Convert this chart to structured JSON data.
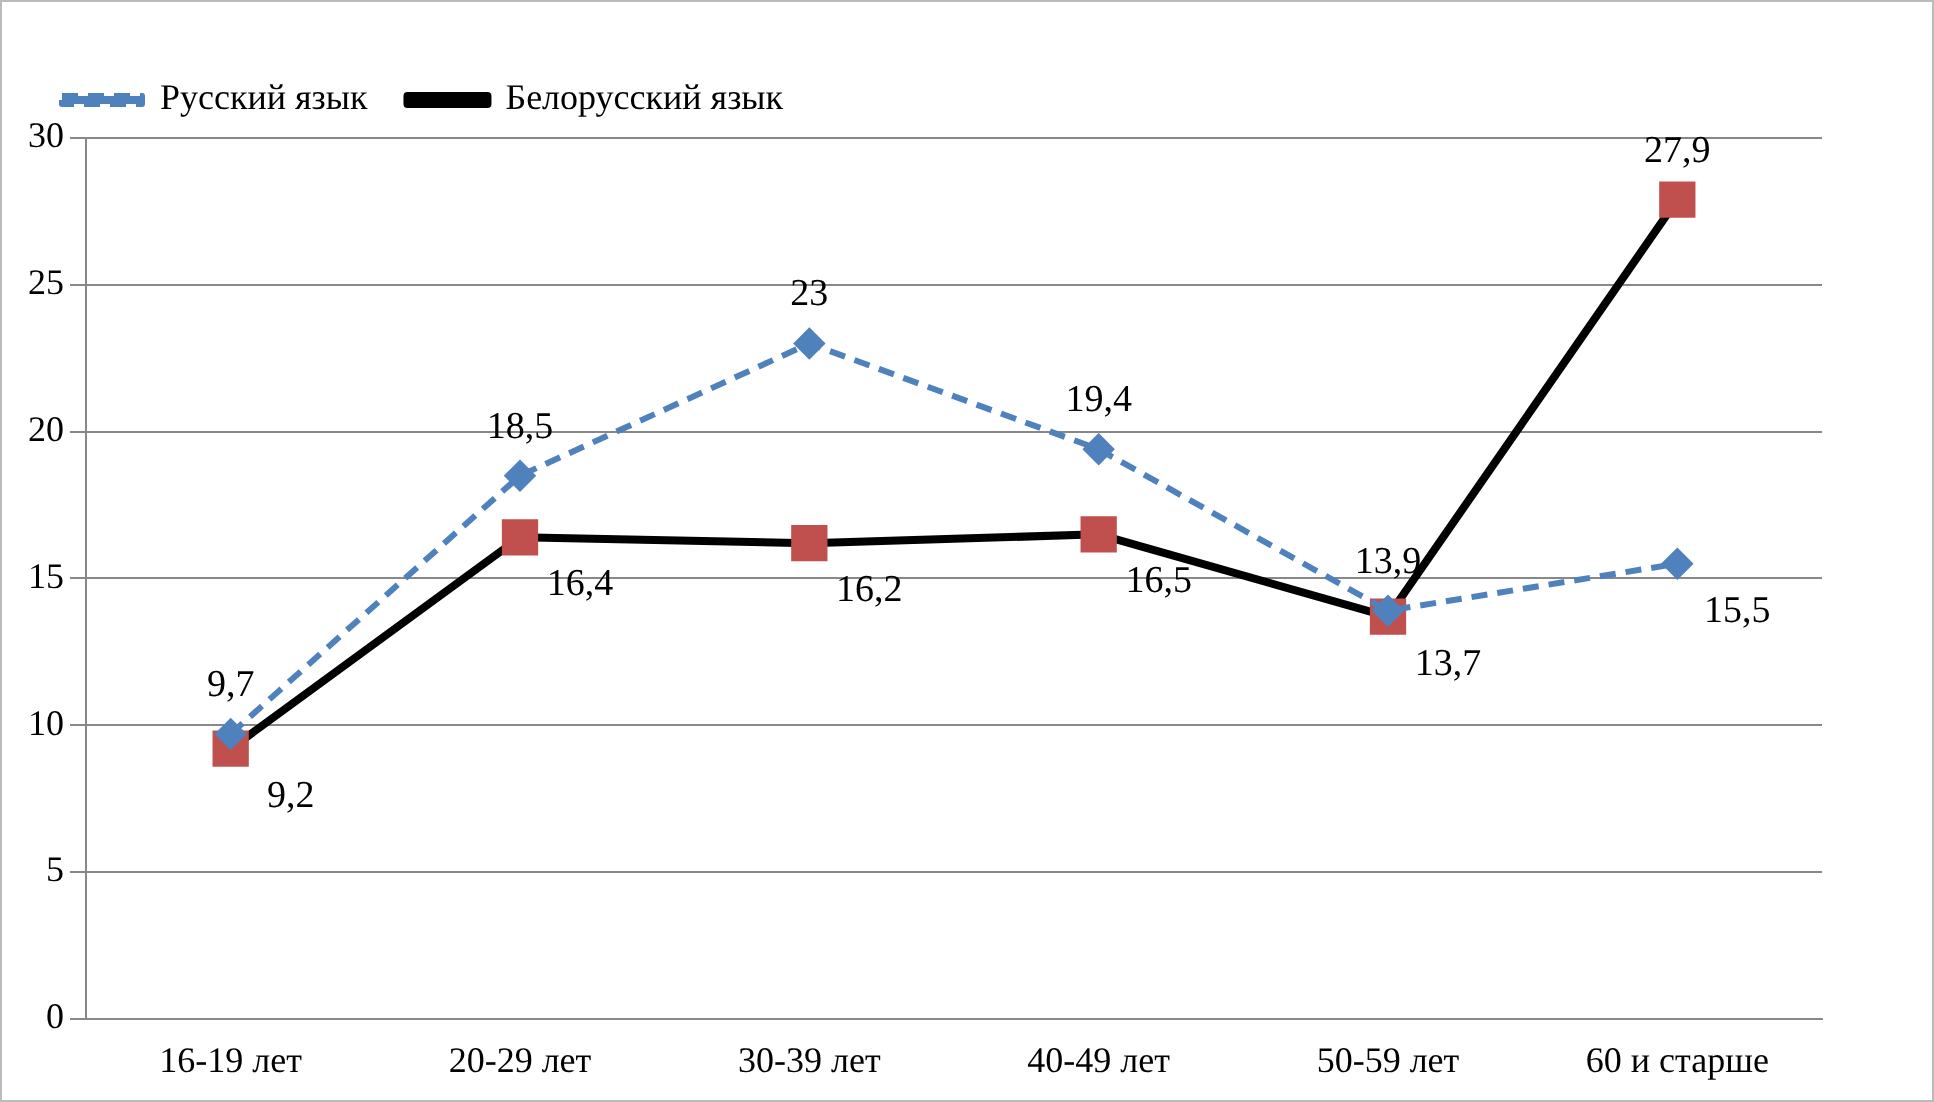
{
  "chart_data": {
    "type": "line",
    "categories": [
      "16-19 лет",
      "20-29 лет",
      "30-39 лет",
      "40-49 лет",
      "50-59 лет",
      "60 и старше"
    ],
    "series": [
      {
        "name": "Русский язык",
        "color": "#4f81bd",
        "marker": "diamond",
        "line_style": "dashed",
        "values": [
          9.7,
          18.5,
          23,
          19.4,
          13.9,
          15.5
        ],
        "value_labels": [
          "9,7",
          "18,5",
          "23",
          "19,4",
          "13,9",
          "15,5"
        ]
      },
      {
        "name": "Белорусский язык",
        "color": "#000000",
        "colors": [
          "#c0504d",
          "#c0504d",
          "#c0504d",
          "#c0504d",
          "#c0504d",
          "#c0504d"
        ],
        "marker": "square",
        "line_style": "solid",
        "values": [
          9.2,
          16.4,
          16.2,
          16.5,
          13.7,
          27.9
        ],
        "value_labels": [
          "9,2",
          "16,4",
          "16,2",
          "16,5",
          "13,7",
          "27,9"
        ]
      }
    ],
    "ylim": [
      0,
      30
    ],
    "yticks": [
      0,
      5,
      10,
      15,
      20,
      25,
      30
    ],
    "grid": "y",
    "legend": "top left"
  }
}
